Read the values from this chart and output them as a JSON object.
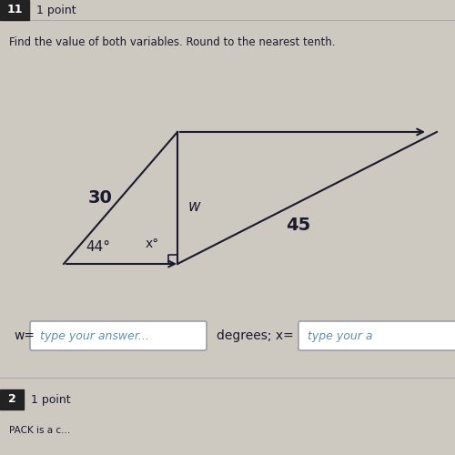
{
  "bg_color": "#cdc8c0",
  "header_num": "11",
  "header_text": "1 point",
  "instruction": "Find the value of both variables. Round to the nearest tenth.",
  "label_30": "30",
  "label_w": "w",
  "label_45": "45",
  "label_angle": "44°",
  "label_x": "x°",
  "w_label": "w=",
  "w_placeholder": "type your answer...",
  "x_label": "degrees; x=",
  "x_placeholder": "type your a",
  "fig_width": 5.0,
  "fig_height": 5.0,
  "dpi": 100,
  "text_color": "#1a1a2e",
  "line_color": "#1a1a2e",
  "box_border_color": "#9090a0",
  "placeholder_color": "#6090b0"
}
